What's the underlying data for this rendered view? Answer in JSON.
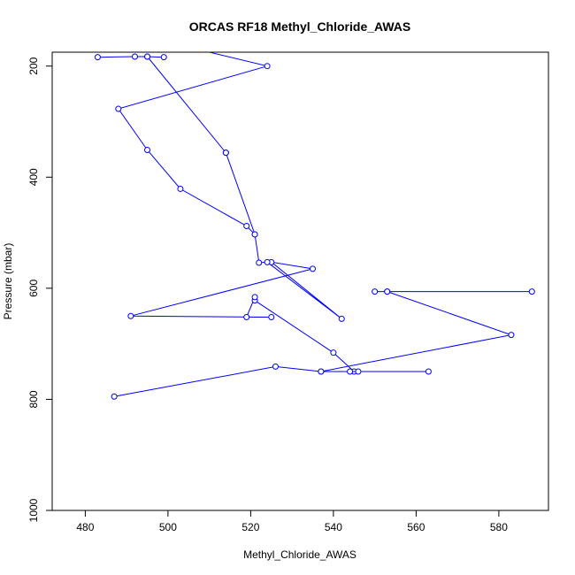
{
  "chart_data": {
    "type": "line",
    "title": "ORCAS RF18 Methyl_Chloride_AWAS",
    "xlabel": "Methyl_Chloride_AWAS",
    "ylabel": "Pressure (mbar)",
    "xlim": [
      472,
      592
    ],
    "ylim": [
      1000,
      175
    ],
    "y_reversed": true,
    "x_ticks": [
      480,
      500,
      520,
      540,
      560,
      580
    ],
    "y_ticks": [
      200,
      400,
      600,
      800,
      1000
    ],
    "grid": false,
    "legend": "none",
    "series": [
      {
        "color": "#0000ff",
        "points": [
          {
            "x": 487,
            "y": 795
          },
          {
            "x": 526,
            "y": 741
          },
          {
            "x": 537,
            "y": 750
          },
          {
            "x": 545,
            "y": 750
          },
          {
            "x": 540,
            "y": 716
          },
          {
            "x": 521,
            "y": 622
          },
          {
            "x": 521,
            "y": 616
          },
          {
            "x": 519,
            "y": 652
          },
          {
            "x": 525,
            "y": 652
          },
          {
            "x": 491,
            "y": 650
          },
          {
            "x": 535,
            "y": 565
          },
          {
            "x": 525,
            "y": 553
          },
          {
            "x": 542,
            "y": 655
          },
          {
            "x": 524,
            "y": 553
          },
          {
            "x": 522,
            "y": 554
          },
          {
            "x": 521,
            "y": 503
          },
          {
            "x": 519,
            "y": 488
          },
          {
            "x": 503,
            "y": 421
          },
          {
            "x": 495,
            "y": 351
          },
          {
            "x": 488,
            "y": 277
          },
          {
            "x": 524,
            "y": 200
          },
          {
            "x": 510,
            "y": 175
          }
        ]
      },
      {
        "color": "#0000ff",
        "points": [
          {
            "x": 588,
            "y": 606
          },
          {
            "x": 553,
            "y": 606
          },
          {
            "x": 550,
            "y": 606
          }
        ]
      },
      {
        "color": "#0000ff",
        "points": [
          {
            "x": 553,
            "y": 606
          },
          {
            "x": 583,
            "y": 684
          },
          {
            "x": 537,
            "y": 750
          }
        ]
      },
      {
        "color": "#0000ff",
        "points": [
          {
            "x": 544,
            "y": 750
          },
          {
            "x": 546,
            "y": 750
          },
          {
            "x": 563,
            "y": 750
          }
        ]
      },
      {
        "color": "#0000ff",
        "points": [
          {
            "x": 514,
            "y": 356
          },
          {
            "x": 521,
            "y": 503
          }
        ]
      },
      {
        "color": "#0000ff",
        "points": [
          {
            "x": 514,
            "y": 356
          },
          {
            "x": 495,
            "y": 183
          }
        ]
      },
      {
        "color": "#0000ff",
        "points": [
          {
            "x": 483,
            "y": 184
          },
          {
            "x": 492,
            "y": 183
          },
          {
            "x": 495,
            "y": 183
          },
          {
            "x": 499,
            "y": 184
          }
        ]
      }
    ]
  }
}
